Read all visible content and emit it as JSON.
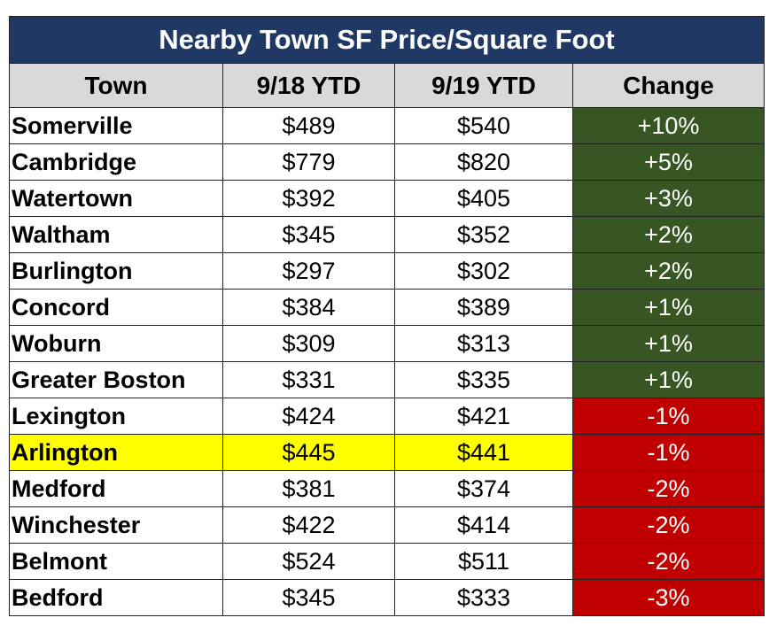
{
  "title": "Nearby Town SF Price/Square Foot",
  "headers": [
    "Town",
    "9/18 YTD",
    "9/19 YTD",
    "Change"
  ],
  "rows": [
    {
      "town": "Somerville",
      "y18": "$489",
      "y19": "$540",
      "change": "+10%",
      "dir": "pos"
    },
    {
      "town": "Cambridge",
      "y18": "$779",
      "y19": "$820",
      "change": "+5%",
      "dir": "pos"
    },
    {
      "town": "Watertown",
      "y18": "$392",
      "y19": "$405",
      "change": "+3%",
      "dir": "pos"
    },
    {
      "town": "Waltham",
      "y18": "$345",
      "y19": "$352",
      "change": "+2%",
      "dir": "pos"
    },
    {
      "town": "Burlington",
      "y18": "$297",
      "y19": "$302",
      "change": "+2%",
      "dir": "pos"
    },
    {
      "town": "Concord",
      "y18": "$384",
      "y19": "$389",
      "change": "+1%",
      "dir": "pos"
    },
    {
      "town": "Woburn",
      "y18": "$309",
      "y19": "$313",
      "change": "+1%",
      "dir": "pos"
    },
    {
      "town": "Greater Boston",
      "y18": "$331",
      "y19": "$335",
      "change": "+1%",
      "dir": "pos"
    },
    {
      "town": "Lexington",
      "y18": "$424",
      "y19": "$421",
      "change": "-1%",
      "dir": "neg"
    },
    {
      "town": "Arlington",
      "y18": "$445",
      "y19": "$441",
      "change": "-1%",
      "dir": "neg",
      "highlight": true
    },
    {
      "town": "Medford",
      "y18": "$381",
      "y19": "$374",
      "change": "-2%",
      "dir": "neg"
    },
    {
      "town": "Winchester",
      "y18": "$422",
      "y19": "$414",
      "change": "-2%",
      "dir": "neg"
    },
    {
      "town": "Belmont",
      "y18": "$524",
      "y19": "$511",
      "change": "-2%",
      "dir": "neg"
    },
    {
      "town": "Bedford",
      "y18": "$345",
      "y19": "$333",
      "change": "-3%",
      "dir": "neg"
    }
  ],
  "colors": {
    "title_bg": "#1f3864",
    "header_bg": "#d9d9d9",
    "positive": "#375623",
    "negative": "#c00000",
    "highlight": "#ffff00"
  }
}
